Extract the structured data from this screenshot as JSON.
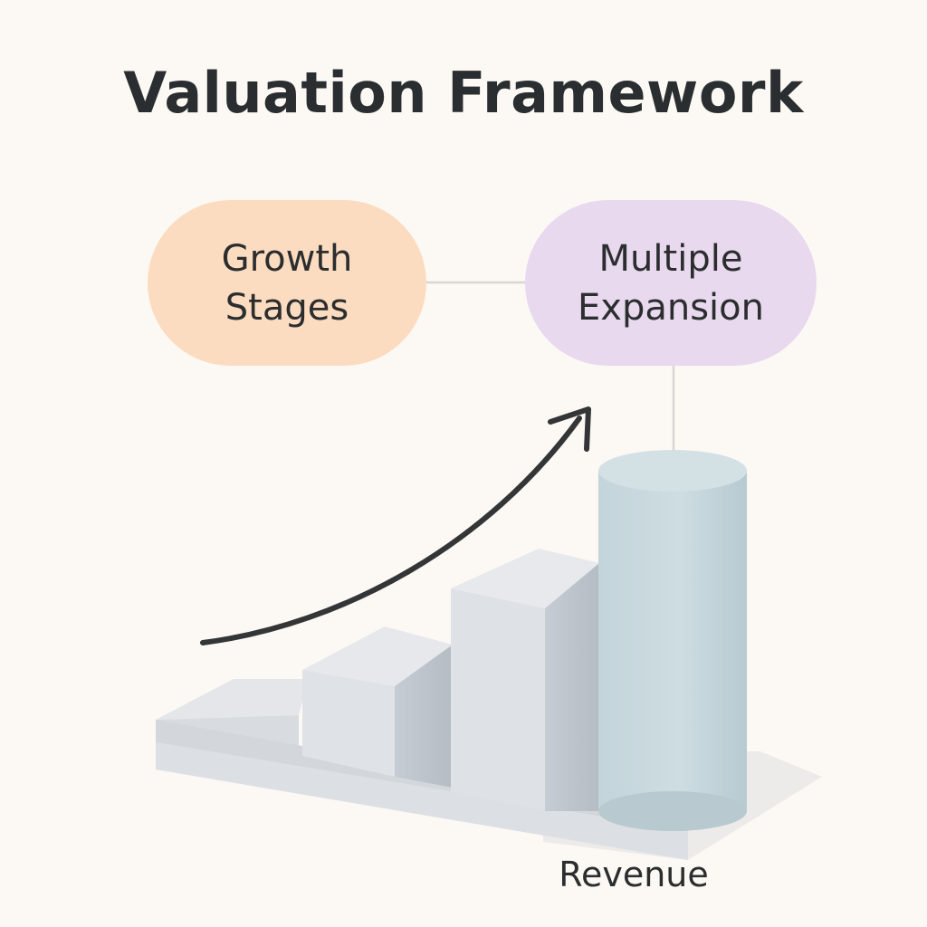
{
  "title": "Valuation Framework",
  "nodes": {
    "growth_stages": {
      "line1": "Growth",
      "line2": "Stages"
    },
    "multiple_expansion": {
      "line1": "Multiple",
      "line2": "Expansion"
    }
  },
  "bottom_label": "Revenue",
  "colors": {
    "background": "#fcf9f5",
    "growth_pill": "#fcdcc0",
    "multiple_pill": "#e8d9ef",
    "steps": "#dfe2e6",
    "cylinder": "#c4d6dc",
    "arrow": "#333536",
    "connector": "#d9d6d4"
  }
}
